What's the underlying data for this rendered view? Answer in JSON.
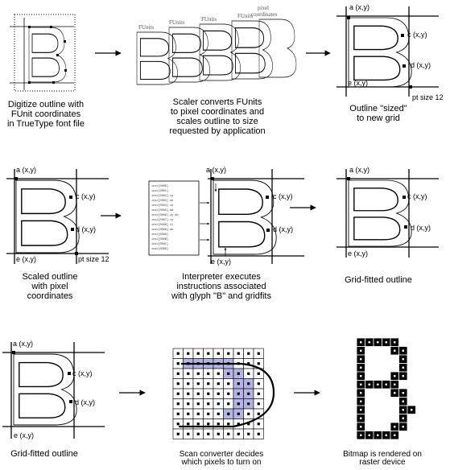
{
  "captions": {
    "c1": "Digitize outline with\nFUnit coordinates\nin TrueType font file",
    "c2": "Scaler converts FUnits\nto pixel coordinates and\nscales outline to size\nrequested by application",
    "c3": "Outline \"sized\"\nto new grid",
    "c4": "Scaled outline\nwith pixel\ncoordinates",
    "c5": "Interpreter executes\ninstructions associated\nwith glyph \"B\" and gridfits",
    "c6": "Grid-fitted outline",
    "c7": "Grid-fitted outline",
    "c8": "Scan converter decides\nwhich pixels to turn on",
    "c9": "Bitmap is rendered on\nraster device"
  },
  "labels": {
    "a": "a (x,y)",
    "c": "c (x,y)",
    "d": "d (x,y)",
    "e": "e (x,y)",
    "pt": "pt size 12",
    "funits": "FUnits",
    "pixel_coords_1": "pixel",
    "pixel_coords_2": "coordinates"
  },
  "instruction_lines": [
    "inst[0000]",
    "inst[0001]",
    "inst[0002] rp",
    "inst[0003] ab",
    "inst[0004] sh",
    "inst[0005] md",
    "inst[0006] zp ab",
    "inst[0007] rp",
    "inst[0008] dl",
    "inst[0009] ab",
    "inst[000A]",
    "inst[000B]",
    "inst[000C]",
    "inst[000D]"
  ],
  "bitmap_rows": [
    "..#####..",
    "..#...##.",
    "..#....#.",
    "..#....#.",
    "..#...##.",
    "..#####..",
    "..#...##.",
    "..#....#.",
    "..#....##",
    "..#....#.",
    "..#...##.",
    "..#####.."
  ],
  "colors": {
    "highlight": "#b4b4e6",
    "ink": "#000000"
  }
}
